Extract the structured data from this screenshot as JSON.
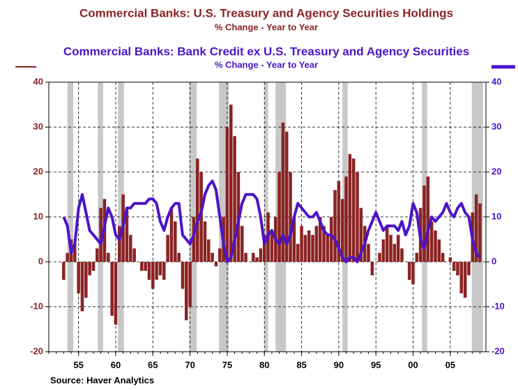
{
  "chart_data": {
    "type": "bar_line",
    "source": "Source: Haver Analytics",
    "x": [
      1953,
      1953.5,
      1954,
      1954.5,
      1955,
      1955.5,
      1956,
      1956.5,
      1957,
      1957.5,
      1958,
      1958.5,
      1959,
      1959.5,
      1960,
      1960.5,
      1961,
      1961.5,
      1962,
      1962.5,
      1963,
      1963.5,
      1964,
      1964.5,
      1965,
      1965.5,
      1966,
      1966.5,
      1967,
      1967.5,
      1968,
      1968.5,
      1969,
      1969.5,
      1970,
      1970.5,
      1971,
      1971.5,
      1972,
      1972.5,
      1973,
      1973.5,
      1974,
      1974.5,
      1975,
      1975.5,
      1976,
      1976.5,
      1977,
      1977.5,
      1978,
      1978.5,
      1979,
      1979.5,
      1980,
      1980.5,
      1981,
      1981.5,
      1982,
      1982.5,
      1983,
      1983.5,
      1984,
      1984.5,
      1985,
      1985.5,
      1986,
      1986.5,
      1987,
      1987.5,
      1988,
      1988.5,
      1989,
      1989.5,
      1990,
      1990.5,
      1991,
      1991.5,
      1992,
      1992.5,
      1993,
      1993.5,
      1994,
      1994.5,
      1995,
      1995.5,
      1996,
      1996.5,
      1997,
      1997.5,
      1998,
      1998.5,
      1999,
      1999.5,
      2000,
      2000.5,
      2001,
      2001.5,
      2002,
      2002.5,
      2003,
      2003.5,
      2004,
      2004.5,
      2005,
      2005.5,
      2006,
      2006.5,
      2007,
      2007.5,
      2008,
      2008.5,
      2009
    ],
    "series": [
      {
        "name": "Commercial Banks: U.S. Treasury and Agency Securities Holdings",
        "subtitle": "% Change - Year to Year",
        "color": "#8b2323",
        "kind": "bar",
        "axis": "y",
        "values": [
          -4,
          2,
          5,
          4,
          -7,
          -11,
          -8,
          -3,
          -2,
          3,
          12,
          14,
          2,
          -12,
          -14,
          8,
          15,
          12,
          6,
          3,
          0,
          -2,
          -2,
          -4,
          -6,
          -4,
          -3,
          -4,
          6,
          12,
          9,
          2,
          -6,
          -13,
          -10,
          10,
          23,
          20,
          9,
          5,
          2,
          -1,
          3,
          10,
          30,
          35,
          28,
          20,
          8,
          2,
          0,
          2,
          1,
          3,
          6,
          11,
          7,
          10,
          20,
          31,
          29,
          20,
          10,
          4,
          8,
          6,
          7,
          6,
          8,
          10,
          8,
          6,
          10,
          16,
          18,
          14,
          19,
          24,
          23,
          20,
          12,
          8,
          4,
          -3,
          0,
          2,
          5,
          8,
          6,
          4,
          6,
          3,
          0,
          -4,
          -5,
          2,
          12,
          17,
          19,
          9,
          7,
          5,
          2,
          0,
          1,
          -2,
          -3,
          -7,
          -8,
          -3,
          11,
          15,
          13
        ]
      },
      {
        "name": "Commercial Banks: Bank Credit ex U.S. Treasury and Agency Securities",
        "subtitle": "% Change - Year to Year",
        "color": "#4b14c8",
        "kind": "line",
        "axis": "y2",
        "values": [
          10,
          8,
          2,
          4,
          12,
          15,
          11,
          7,
          6,
          5,
          4,
          8,
          12,
          10,
          6,
          5,
          8,
          12,
          12,
          13,
          13,
          13,
          13,
          14,
          14,
          13,
          9,
          7,
          10,
          12,
          13,
          13,
          6,
          5,
          4,
          6,
          9,
          11,
          15,
          17,
          18,
          16,
          10,
          4,
          0,
          1,
          5,
          9,
          13,
          15,
          15,
          15,
          14,
          10,
          4,
          6,
          7,
          5,
          4,
          6,
          4,
          6,
          10,
          13,
          12,
          11,
          10,
          10,
          11,
          9,
          7,
          6,
          6,
          5,
          3,
          1,
          0,
          1,
          1,
          0,
          2,
          4,
          7,
          9,
          11,
          9,
          7,
          8,
          8,
          8,
          7,
          9,
          6,
          8,
          13,
          11,
          5,
          3,
          7,
          10,
          9,
          10,
          11,
          13,
          11,
          10,
          12,
          13,
          11,
          10,
          5,
          2,
          1
        ]
      }
    ],
    "recessions": [
      [
        1953.5,
        1954.3
      ],
      [
        1957.6,
        1958.3
      ],
      [
        1960.3,
        1961.1
      ],
      [
        1969.9,
        1970.9
      ],
      [
        1973.9,
        1975.2
      ],
      [
        1980,
        1980.5
      ],
      [
        1981.5,
        1982.9
      ],
      [
        1990.5,
        1991.2
      ],
      [
        2001.2,
        2001.9
      ],
      [
        2007.9,
        2009.4
      ]
    ],
    "shading_color": "#c8c8c8",
    "xlim": [
      1951,
      2009.8
    ],
    "xticks": [
      {
        "value": 1955,
        "label": "55"
      },
      {
        "value": 1960,
        "label": "60"
      },
      {
        "value": 1965,
        "label": "65"
      },
      {
        "value": 1970,
        "label": "70"
      },
      {
        "value": 1975,
        "label": "75"
      },
      {
        "value": 1980,
        "label": "80"
      },
      {
        "value": 1985,
        "label": "85"
      },
      {
        "value": 1990,
        "label": "90"
      },
      {
        "value": 1995,
        "label": "95"
      },
      {
        "value": 2000,
        "label": "00"
      },
      {
        "value": 2005,
        "label": "05"
      }
    ],
    "ylim": [
      -20,
      40
    ],
    "yticks": [
      -20,
      -10,
      0,
      10,
      20,
      30,
      40
    ],
    "y2lim": [
      -20,
      40
    ],
    "y2ticks": [
      -20,
      -10,
      0,
      10,
      20,
      30,
      40
    ],
    "grid": true
  }
}
